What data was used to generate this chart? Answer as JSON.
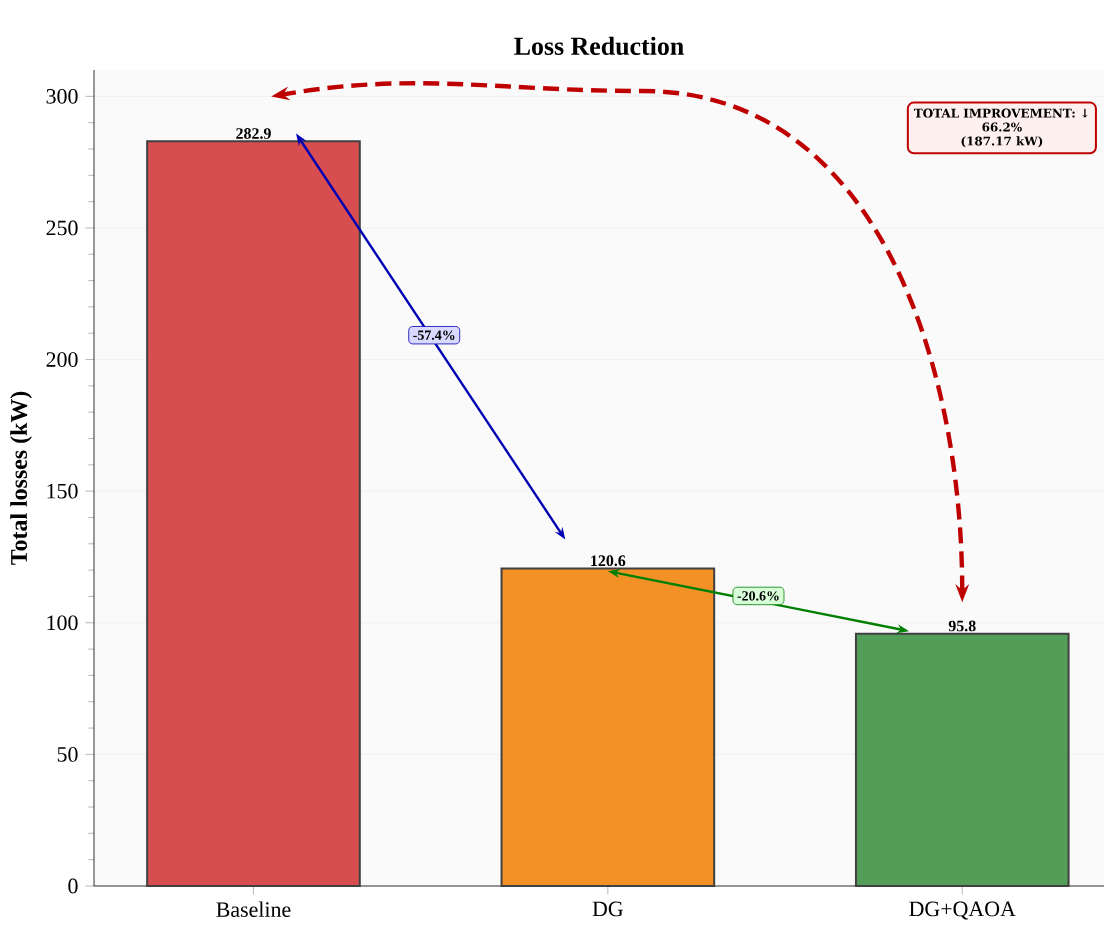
{
  "chart_data": {
    "type": "bar",
    "title": "Loss Reduction",
    "ylabel": "Total losses (kW)",
    "categories": [
      "Baseline",
      "DG",
      "DG+QAOA"
    ],
    "values": [
      282.9,
      120.6,
      95.8
    ],
    "colors": [
      "#d84e50",
      "#f39026",
      "#529d57"
    ],
    "ylim": [
      0,
      310
    ],
    "yticks": [
      0,
      50,
      100,
      150,
      200,
      250,
      300
    ],
    "grid": "y",
    "data_labels": true,
    "annotations": [
      "-57.4%",
      "-20.6%",
      "TOTAL IMPROVEMENT: ↓",
      "66.2%",
      "(187.17 kW)"
    ]
  }
}
